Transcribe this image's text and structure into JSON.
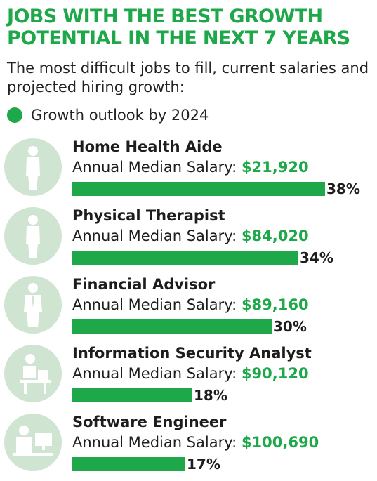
{
  "title": "JOBS WITH THE BEST GROWTH POTENTIAL IN THE NEXT 7 YEARS",
  "subtitle": "The most difficult jobs to fill, current salaries and projected hiring growth:",
  "legend": {
    "label": "Growth outlook by 2024"
  },
  "colors": {
    "accent": "#1ea84a",
    "bar": "#1ea84a",
    "avatar_bg": "#cfe5d2",
    "avatar_fg": "#ffffff",
    "text": "#1d1d1b"
  },
  "salary_label": "Annual Median Salary:",
  "jobs": [
    {
      "title": "Home Health Aide",
      "salary": "$21,920",
      "growth": 38,
      "growth_label": "38%",
      "icon": "person-icon"
    },
    {
      "title": "Physical Therapist",
      "salary": "$84,020",
      "growth": 34,
      "growth_label": "34%",
      "icon": "person-icon"
    },
    {
      "title": "Financial Advisor",
      "salary": "$89,160",
      "growth": 30,
      "growth_label": "30%",
      "icon": "person-with-tie-icon"
    },
    {
      "title": "Information Security Analyst",
      "salary": "$90,120",
      "growth": 18,
      "growth_label": "18%",
      "icon": "person-at-laptop-icon"
    },
    {
      "title": "Software Engineer",
      "salary": "$100,690",
      "growth": 17,
      "growth_label": "17%",
      "icon": "person-at-computer-icon"
    }
  ],
  "chart_data": {
    "type": "bar",
    "categories": [
      "Home Health Aide",
      "Physical Therapist",
      "Financial Advisor",
      "Information Security Analyst",
      "Software Engineer"
    ],
    "series": [
      {
        "name": "Growth outlook by 2024",
        "values": [
          38,
          34,
          30,
          18,
          17
        ]
      }
    ],
    "unit": "%",
    "legend": "top-left",
    "grid": false
  }
}
